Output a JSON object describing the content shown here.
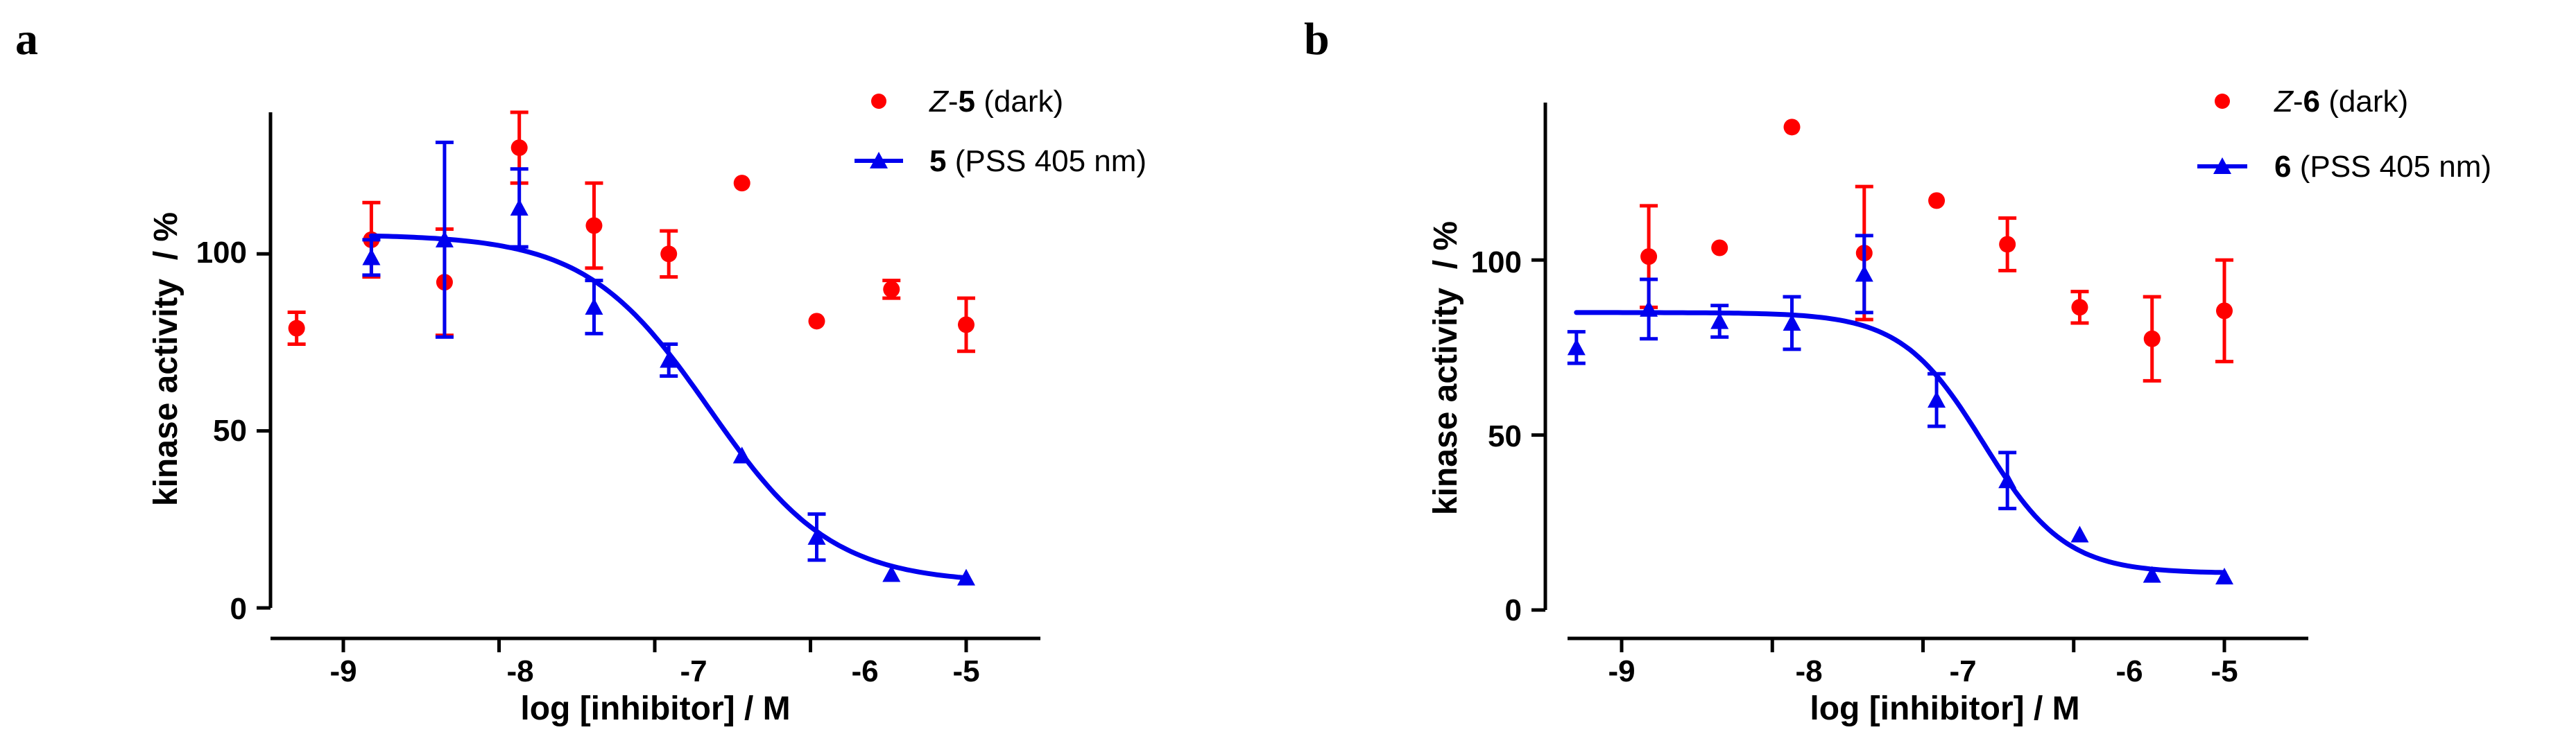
{
  "colors": {
    "dark_series": "#ff0000",
    "pss_series": "#0000ee",
    "axis": "#000000"
  },
  "chart_data": [
    {
      "panel_label": "a",
      "type": "scatter",
      "xlabel": "log [inhibitor] / M",
      "ylabel": "kinase activity  / %",
      "xlim": [
        -9.55,
        -4.45
      ],
      "ylim": [
        0,
        140
      ],
      "xticks": [
        -9,
        -8,
        -7,
        -6,
        -5
      ],
      "xtick_labels": [
        "-9",
        "-8",
        "-7",
        "-6",
        "-5"
      ],
      "yticks": [
        0,
        50,
        100
      ],
      "ytick_labels": [
        "0",
        "50",
        "100"
      ],
      "series": [
        {
          "name": "Z-5 (dark)",
          "legend": {
            "prefix": "Z",
            "sep": "-",
            "compound": "5",
            "suffix": " (dark)"
          },
          "marker": "circle",
          "color": "#ff0000",
          "fit": false,
          "points": [
            {
              "x": -9.3,
              "y": 79,
              "err": 4.5
            },
            {
              "x": -8.82,
              "y": 104,
              "err": 10.5
            },
            {
              "x": -8.35,
              "y": 92,
              "err": 15
            },
            {
              "x": -7.87,
              "y": 130,
              "err": 10
            },
            {
              "x": -7.39,
              "y": 108,
              "err": 12
            },
            {
              "x": -6.91,
              "y": 100,
              "err": 6.5
            },
            {
              "x": -6.44,
              "y": 120,
              "err": 0
            },
            {
              "x": -5.96,
              "y": 81,
              "err": 0
            },
            {
              "x": -5.48,
              "y": 90,
              "err": 2.5
            },
            {
              "x": -5.0,
              "y": 80,
              "err": 7.5
            }
          ]
        },
        {
          "name": "5 (PSS 405 nm)",
          "legend": {
            "prefix": "",
            "sep": "",
            "compound": "5",
            "suffix": " (PSS 405 nm)"
          },
          "marker": "triangle",
          "color": "#0000ee",
          "fit": true,
          "fit_params": {
            "top": 105.5,
            "bottom": 7,
            "logIC50": -6.65,
            "hill": 1.1
          },
          "fit_range": [
            -8.82,
            -5.0
          ],
          "points": [
            {
              "x": -8.82,
              "y": 99,
              "err": 5
            },
            {
              "x": -8.35,
              "y": 104,
              "err": 27.5
            },
            {
              "x": -7.87,
              "y": 113,
              "err": 11
            },
            {
              "x": -7.39,
              "y": 85,
              "err": 7.5
            },
            {
              "x": -6.91,
              "y": 70,
              "err": 4.5
            },
            {
              "x": -6.44,
              "y": 43,
              "err": 0
            },
            {
              "x": -5.96,
              "y": 20,
              "err": 6.5
            },
            {
              "x": -5.48,
              "y": 9.5,
              "err": 0
            },
            {
              "x": -5.0,
              "y": 8.5,
              "err": 0
            }
          ]
        }
      ]
    },
    {
      "panel_label": "b",
      "type": "scatter",
      "xlabel": "log [inhibitor] / M",
      "ylabel": "kinase activity  / %",
      "xlim": [
        -9.55,
        -4.45
      ],
      "ylim": [
        0,
        145
      ],
      "xticks": [
        -9,
        -8,
        -7,
        -6,
        -5
      ],
      "xtick_labels": [
        "-9",
        "-8",
        "-7",
        "-6",
        "-5"
      ],
      "yticks": [
        0,
        50,
        100
      ],
      "ytick_labels": [
        "0",
        "50",
        "100"
      ],
      "series": [
        {
          "name": "Z-6 (dark)",
          "legend": {
            "prefix": "Z",
            "sep": "-",
            "compound": "6",
            "suffix": " (dark)"
          },
          "marker": "circle",
          "color": "#ff0000",
          "fit": false,
          "points": [
            {
              "x": -8.82,
              "y": 101,
              "err": 14.5
            },
            {
              "x": -8.35,
              "y": 103.5,
              "err": 0
            },
            {
              "x": -7.87,
              "y": 138,
              "err": 0
            },
            {
              "x": -7.39,
              "y": 102,
              "err": 19
            },
            {
              "x": -6.91,
              "y": 117,
              "err": 0
            },
            {
              "x": -6.44,
              "y": 104.5,
              "err": 7.5
            },
            {
              "x": -5.96,
              "y": 86.5,
              "err": 4.5
            },
            {
              "x": -5.48,
              "y": 77.5,
              "err": 12
            },
            {
              "x": -5.0,
              "y": 85.5,
              "err": 14.5
            }
          ]
        },
        {
          "name": "6 (PSS 405 nm)",
          "legend": {
            "prefix": "",
            "sep": "",
            "compound": "6",
            "suffix": " (PSS 405 nm)"
          },
          "marker": "triangle",
          "color": "#0000ee",
          "fit": true,
          "fit_params": {
            "top": 85,
            "bottom": 10.5,
            "logIC50": -6.6,
            "hill": 1.6
          },
          "fit_range": [
            -9.3,
            -5.0
          ],
          "points": [
            {
              "x": -9.3,
              "y": 75,
              "err": 4.5
            },
            {
              "x": -8.82,
              "y": 86,
              "err": 8.5
            },
            {
              "x": -8.35,
              "y": 82.5,
              "err": 4.5
            },
            {
              "x": -7.87,
              "y": 82,
              "err": 7.5
            },
            {
              "x": -7.39,
              "y": 96,
              "err": 11
            },
            {
              "x": -6.91,
              "y": 60,
              "err": 7.5
            },
            {
              "x": -6.44,
              "y": 37,
              "err": 8
            },
            {
              "x": -5.96,
              "y": 21.5,
              "err": 0
            },
            {
              "x": -5.48,
              "y": 10,
              "err": 0
            },
            {
              "x": -5.0,
              "y": 9.5,
              "err": 0
            }
          ]
        }
      ]
    }
  ]
}
